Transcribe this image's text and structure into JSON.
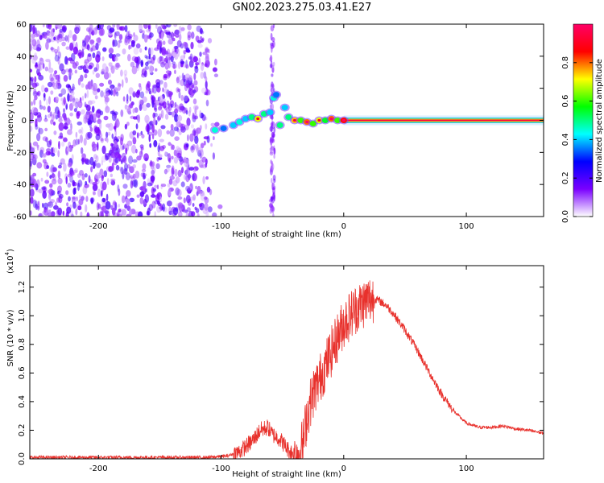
{
  "title": "GN02.2023.275.03.41.E27",
  "chart_data": [
    {
      "type": "heatmap",
      "xlabel": "Height of straight line (km)",
      "ylabel": "Frequency (Hz)",
      "xlim": [
        -256,
        163
      ],
      "ylim": [
        -60,
        60
      ],
      "xticks": [
        -200,
        -100,
        0,
        100
      ],
      "xtick_labels": [
        "-200",
        "-100",
        "0",
        "100"
      ],
      "yticks": [
        -60,
        -40,
        -20,
        0,
        20,
        40,
        60
      ],
      "ytick_labels": [
        "-60",
        "-40",
        "-20",
        "0",
        "20",
        "40",
        "60"
      ],
      "colorbar": {
        "label": "Normalized spectral amplitude",
        "range": [
          0,
          1
        ],
        "ticks": [
          0.0,
          0.2,
          0.4,
          0.6,
          0.8
        ],
        "tick_labels": [
          "0.0",
          "0.2",
          "0.4",
          "0.6",
          "0.8"
        ],
        "colormap": [
          "#ffffff",
          "#7a00ff",
          "#0000ff",
          "#00ffff",
          "#00ff00",
          "#ffff00",
          "#ff0000",
          "#ff0066"
        ]
      },
      "noise_region": {
        "x_start": -256,
        "x_end": -100,
        "f_min": -60,
        "f_max": 60,
        "amplitude": 0.2
      },
      "vertical_streak": {
        "x": -58,
        "f_min": -60,
        "f_max": 60,
        "amplitude": 0.08
      },
      "ridge": [
        {
          "x": -105,
          "f": -6,
          "amp": 0.45
        },
        {
          "x": -98,
          "f": -5,
          "amp": 0.35
        },
        {
          "x": -90,
          "f": -3,
          "amp": 0.4
        },
        {
          "x": -85,
          "f": -1,
          "amp": 0.45
        },
        {
          "x": -80,
          "f": 1,
          "amp": 0.4
        },
        {
          "x": -75,
          "f": 2,
          "amp": 0.5
        },
        {
          "x": -70,
          "f": 1,
          "amp": 0.7
        },
        {
          "x": -65,
          "f": 4,
          "amp": 0.5
        },
        {
          "x": -60,
          "f": 5,
          "amp": 0.4
        },
        {
          "x": -57,
          "f": 14,
          "amp": 0.45
        },
        {
          "x": -55,
          "f": 16,
          "amp": 0.35
        },
        {
          "x": -52,
          "f": -3,
          "amp": 0.5
        },
        {
          "x": -48,
          "f": 8,
          "amp": 0.4
        },
        {
          "x": -45,
          "f": 2,
          "amp": 0.5
        },
        {
          "x": -40,
          "f": 0,
          "amp": 0.75
        },
        {
          "x": -35,
          "f": 0,
          "amp": 0.6
        },
        {
          "x": -30,
          "f": -1,
          "amp": 0.8
        },
        {
          "x": -25,
          "f": -2,
          "amp": 0.6
        },
        {
          "x": -20,
          "f": 0,
          "amp": 0.7
        },
        {
          "x": -15,
          "f": 0,
          "amp": 0.55
        },
        {
          "x": -10,
          "f": 1,
          "amp": 0.8
        },
        {
          "x": -5,
          "f": 0,
          "amp": 0.6
        },
        {
          "x": 0,
          "f": 0,
          "amp": 0.85
        }
      ],
      "steady_line": {
        "x_start": 0,
        "x_end": 163,
        "f": 0,
        "amp": 0.95
      }
    },
    {
      "type": "line",
      "xlabel": "Height of straight line (km)",
      "ylabel": "SNR (10 * v/v)",
      "scale_label": "(x10",
      "scale_exponent": "4",
      "xlim": [
        -256,
        163
      ],
      "ylim": [
        0,
        1.35
      ],
      "xticks": [
        -200,
        -100,
        0,
        100
      ],
      "xtick_labels": [
        "-200",
        "-100",
        "0",
        "100"
      ],
      "yticks": [
        0.0,
        0.2,
        0.4,
        0.6,
        0.8,
        1.0,
        1.2
      ],
      "ytick_labels": [
        "0.0",
        "0.2",
        "0.4",
        "0.6",
        "0.8",
        "1.0",
        "1.2"
      ],
      "line_color": "#e8312c",
      "series": [
        {
          "x": [
            -256,
            -220,
            -180,
            -140,
            -110,
            -95,
            -85,
            -75,
            -68,
            -62,
            -58,
            -52,
            -46,
            -40,
            -36,
            -33,
            -30,
            -27,
            -24,
            -20,
            -15,
            -10,
            -5,
            0,
            5,
            10,
            15,
            20,
            25,
            30,
            35,
            40,
            50,
            60,
            70,
            80,
            90,
            100,
            110,
            120,
            130,
            140,
            150,
            163
          ],
          "values": [
            0.01,
            0.01,
            0.01,
            0.01,
            0.01,
            0.02,
            0.05,
            0.12,
            0.2,
            0.22,
            0.17,
            0.14,
            0.07,
            0.03,
            0.05,
            0.12,
            0.3,
            0.4,
            0.48,
            0.55,
            0.65,
            0.75,
            0.85,
            0.95,
            1.0,
            1.05,
            1.08,
            1.11,
            1.12,
            1.1,
            1.07,
            1.02,
            0.9,
            0.76,
            0.6,
            0.45,
            0.33,
            0.25,
            0.22,
            0.22,
            0.23,
            0.21,
            0.2,
            0.18
          ]
        }
      ]
    }
  ]
}
